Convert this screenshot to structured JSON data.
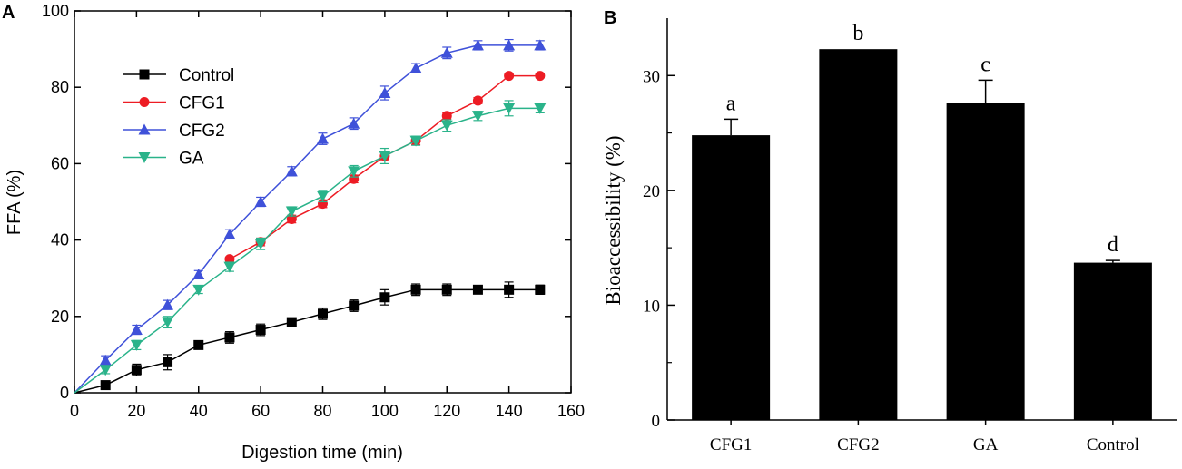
{
  "chart_data": [
    {
      "panel_label": "A",
      "type": "line",
      "xlabel": "Digestion time (min)",
      "ylabel": "FFA (%)",
      "xlim": [
        0,
        160
      ],
      "ylim": [
        0,
        100
      ],
      "xticks": [
        0,
        20,
        40,
        60,
        80,
        100,
        120,
        140,
        160
      ],
      "yticks": [
        0,
        20,
        40,
        60,
        80,
        100
      ],
      "legend_position": "top-left",
      "series": [
        {
          "name": "Control",
          "color": "#000000",
          "marker": "square",
          "x": [
            0,
            10,
            20,
            30,
            40,
            50,
            60,
            70,
            80,
            90,
            100,
            110,
            120,
            130,
            140,
            150
          ],
          "y": [
            0,
            2,
            6,
            8,
            12.5,
            14.5,
            16.5,
            18.5,
            20.7,
            22.8,
            25,
            27,
            27,
            27,
            27,
            27
          ],
          "err": [
            0,
            1,
            1.5,
            2,
            0.5,
            1.5,
            1.5,
            1,
            1.5,
            1.5,
            2,
            1.5,
            1.5,
            1,
            2,
            1.2
          ]
        },
        {
          "name": "CFG1",
          "color": "#ed1c24",
          "marker": "circle",
          "x": [
            50,
            60,
            70,
            80,
            90,
            100,
            110,
            120,
            130,
            140,
            150
          ],
          "y": [
            35,
            39.5,
            45.5,
            49.5,
            56,
            62,
            66,
            72.5,
            76.5,
            83,
            83
          ],
          "err": [
            0.5,
            1,
            1,
            1,
            1,
            1,
            1,
            0.8,
            0.8,
            0.5,
            0.5
          ]
        },
        {
          "name": "CFG2",
          "color": "#3f51d9",
          "marker": "triangle-up",
          "x": [
            0,
            10,
            20,
            30,
            40,
            50,
            60,
            70,
            80,
            90,
            100,
            110,
            120,
            130,
            140,
            150
          ],
          "y": [
            0,
            8.5,
            16.5,
            23,
            31,
            41.5,
            50,
            58,
            66.5,
            70.5,
            78.5,
            85,
            89,
            91,
            91,
            91
          ],
          "err": [
            0,
            1.2,
            1.2,
            1.2,
            1,
            1.2,
            1.2,
            1.2,
            1.5,
            1.5,
            1.8,
            1.2,
            1.5,
            1.2,
            1.5,
            1.2
          ]
        },
        {
          "name": "GA",
          "color": "#2ab38a",
          "marker": "triangle-down",
          "x": [
            0,
            10,
            20,
            30,
            40,
            50,
            60,
            70,
            80,
            90,
            100,
            110,
            120,
            130,
            140,
            150
          ],
          "y": [
            0,
            6,
            12.5,
            18.5,
            27,
            33,
            39,
            47.5,
            51.5,
            58,
            62,
            66,
            70,
            72.5,
            74.5,
            74.5
          ],
          "err": [
            0,
            1,
            1.2,
            1.5,
            1,
            1.2,
            1.5,
            1.2,
            1.5,
            1.5,
            2,
            1.2,
            1.5,
            1.2,
            2,
            1.2
          ]
        }
      ]
    },
    {
      "panel_label": "B",
      "type": "bar",
      "xlabel": "",
      "ylabel": "Bioaccessibility (%)",
      "ylim": [
        0,
        35
      ],
      "yticks": [
        0,
        10,
        20,
        30
      ],
      "categories": [
        "CFG1",
        "CFG2",
        "GA",
        "Control"
      ],
      "values": [
        24.8,
        32.3,
        27.6,
        13.7
      ],
      "err": [
        1.4,
        0,
        2.0,
        0.2
      ],
      "letters": [
        "a",
        "b",
        "c",
        "d"
      ],
      "bar_color": "#000000"
    }
  ]
}
